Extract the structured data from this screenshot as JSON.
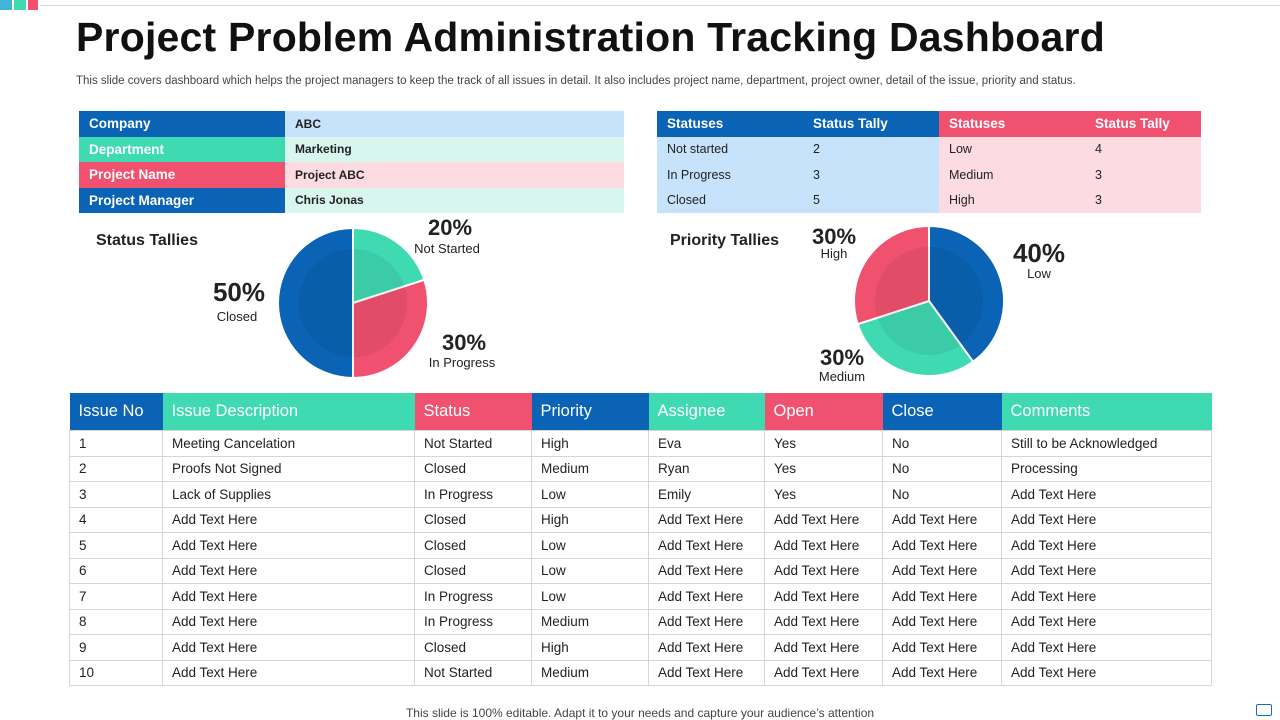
{
  "title": "Project Problem Administration Tracking Dashboard",
  "subtitle": "This slide covers dashboard which helps the project managers to keep the track of all issues in detail. It also includes project name, department, project owner, detail of the issue, priority and status.",
  "colors": {
    "blue": "#0a63b4",
    "green": "#3fd9b2",
    "red": "#f0516e",
    "light_blue": "#c6e3fb",
    "light_green": "#d9f6ee",
    "light_red": "#fcdce2"
  },
  "info": [
    {
      "key": "Company",
      "value": "ABC"
    },
    {
      "key": "Department",
      "value": "Marketing"
    },
    {
      "key": "Project Name",
      "value": "Project ABC"
    },
    {
      "key": "Project Manager",
      "value": "Chris Jonas"
    }
  ],
  "status_table": {
    "headers": [
      "Statuses",
      "Status Tally",
      "Statuses",
      "Status Tally"
    ],
    "rows": [
      [
        "Not started",
        "2",
        "Low",
        "4"
      ],
      [
        "In Progress",
        "3",
        "Medium",
        "3"
      ],
      [
        "Closed",
        "5",
        "High",
        "3"
      ]
    ]
  },
  "status_chart_title": "Status Tallies",
  "priority_chart_title": "Priority Tallies",
  "chart_data": [
    {
      "type": "pie",
      "title": "Status Tallies",
      "slices": [
        {
          "label": "Not Started",
          "value": 20,
          "display": "20%"
        },
        {
          "label": "In Progress",
          "value": 30,
          "display": "30%"
        },
        {
          "label": "Closed",
          "value": 50,
          "display": "50%"
        }
      ]
    },
    {
      "type": "pie",
      "title": "Priority Tallies",
      "slices": [
        {
          "label": "Low",
          "value": 40,
          "display": "40%"
        },
        {
          "label": "Medium",
          "value": 30,
          "display": "30%"
        },
        {
          "label": "High",
          "value": 30,
          "display": "30%"
        }
      ]
    }
  ],
  "issues": {
    "headers": [
      "Issue  No",
      "Issue Description",
      "Status",
      "Priority",
      "Assignee",
      "Open",
      "Close",
      "Comments"
    ],
    "rows": [
      [
        "1",
        "Meeting Cancelation",
        "Not Started",
        "High",
        "Eva",
        "Yes",
        "No",
        "Still to be Acknowledged"
      ],
      [
        "2",
        "Proofs Not Signed",
        "Closed",
        "Medium",
        "Ryan",
        "Yes",
        "No",
        "Processing"
      ],
      [
        "3",
        "Lack of Supplies",
        "In Progress",
        "Low",
        "Emily",
        "Yes",
        "No",
        "Add Text Here"
      ],
      [
        "4",
        "Add Text Here",
        "Closed",
        "High",
        "Add Text Here",
        "Add Text Here",
        "Add Text Here",
        "Add Text Here"
      ],
      [
        "5",
        "Add Text Here",
        "Closed",
        "Low",
        "Add Text Here",
        "Add Text Here",
        "Add Text Here",
        "Add Text Here"
      ],
      [
        "6",
        "Add Text Here",
        "Closed",
        "Low",
        "Add Text Here",
        "Add Text Here",
        "Add Text Here",
        "Add Text Here"
      ],
      [
        "7",
        "Add Text Here",
        "In Progress",
        "Low",
        "Add Text Here",
        "Add Text Here",
        "Add Text Here",
        "Add Text Here"
      ],
      [
        "8",
        "Add Text Here",
        "In Progress",
        "Medium",
        "Add Text Here",
        "Add Text Here",
        "Add Text Here",
        "Add Text Here"
      ],
      [
        "9",
        "Add Text Here",
        "Closed",
        "High",
        "Add Text Here",
        "Add Text Here",
        "Add Text Here",
        "Add Text Here"
      ],
      [
        "10",
        "Add Text Here",
        "Not Started",
        "Medium",
        "Add Text Here",
        "Add Text Here",
        "Add Text Here",
        "Add Text Here"
      ]
    ]
  },
  "footer": "This slide is 100% editable. Adapt it to your needs and capture your audience’s attention"
}
